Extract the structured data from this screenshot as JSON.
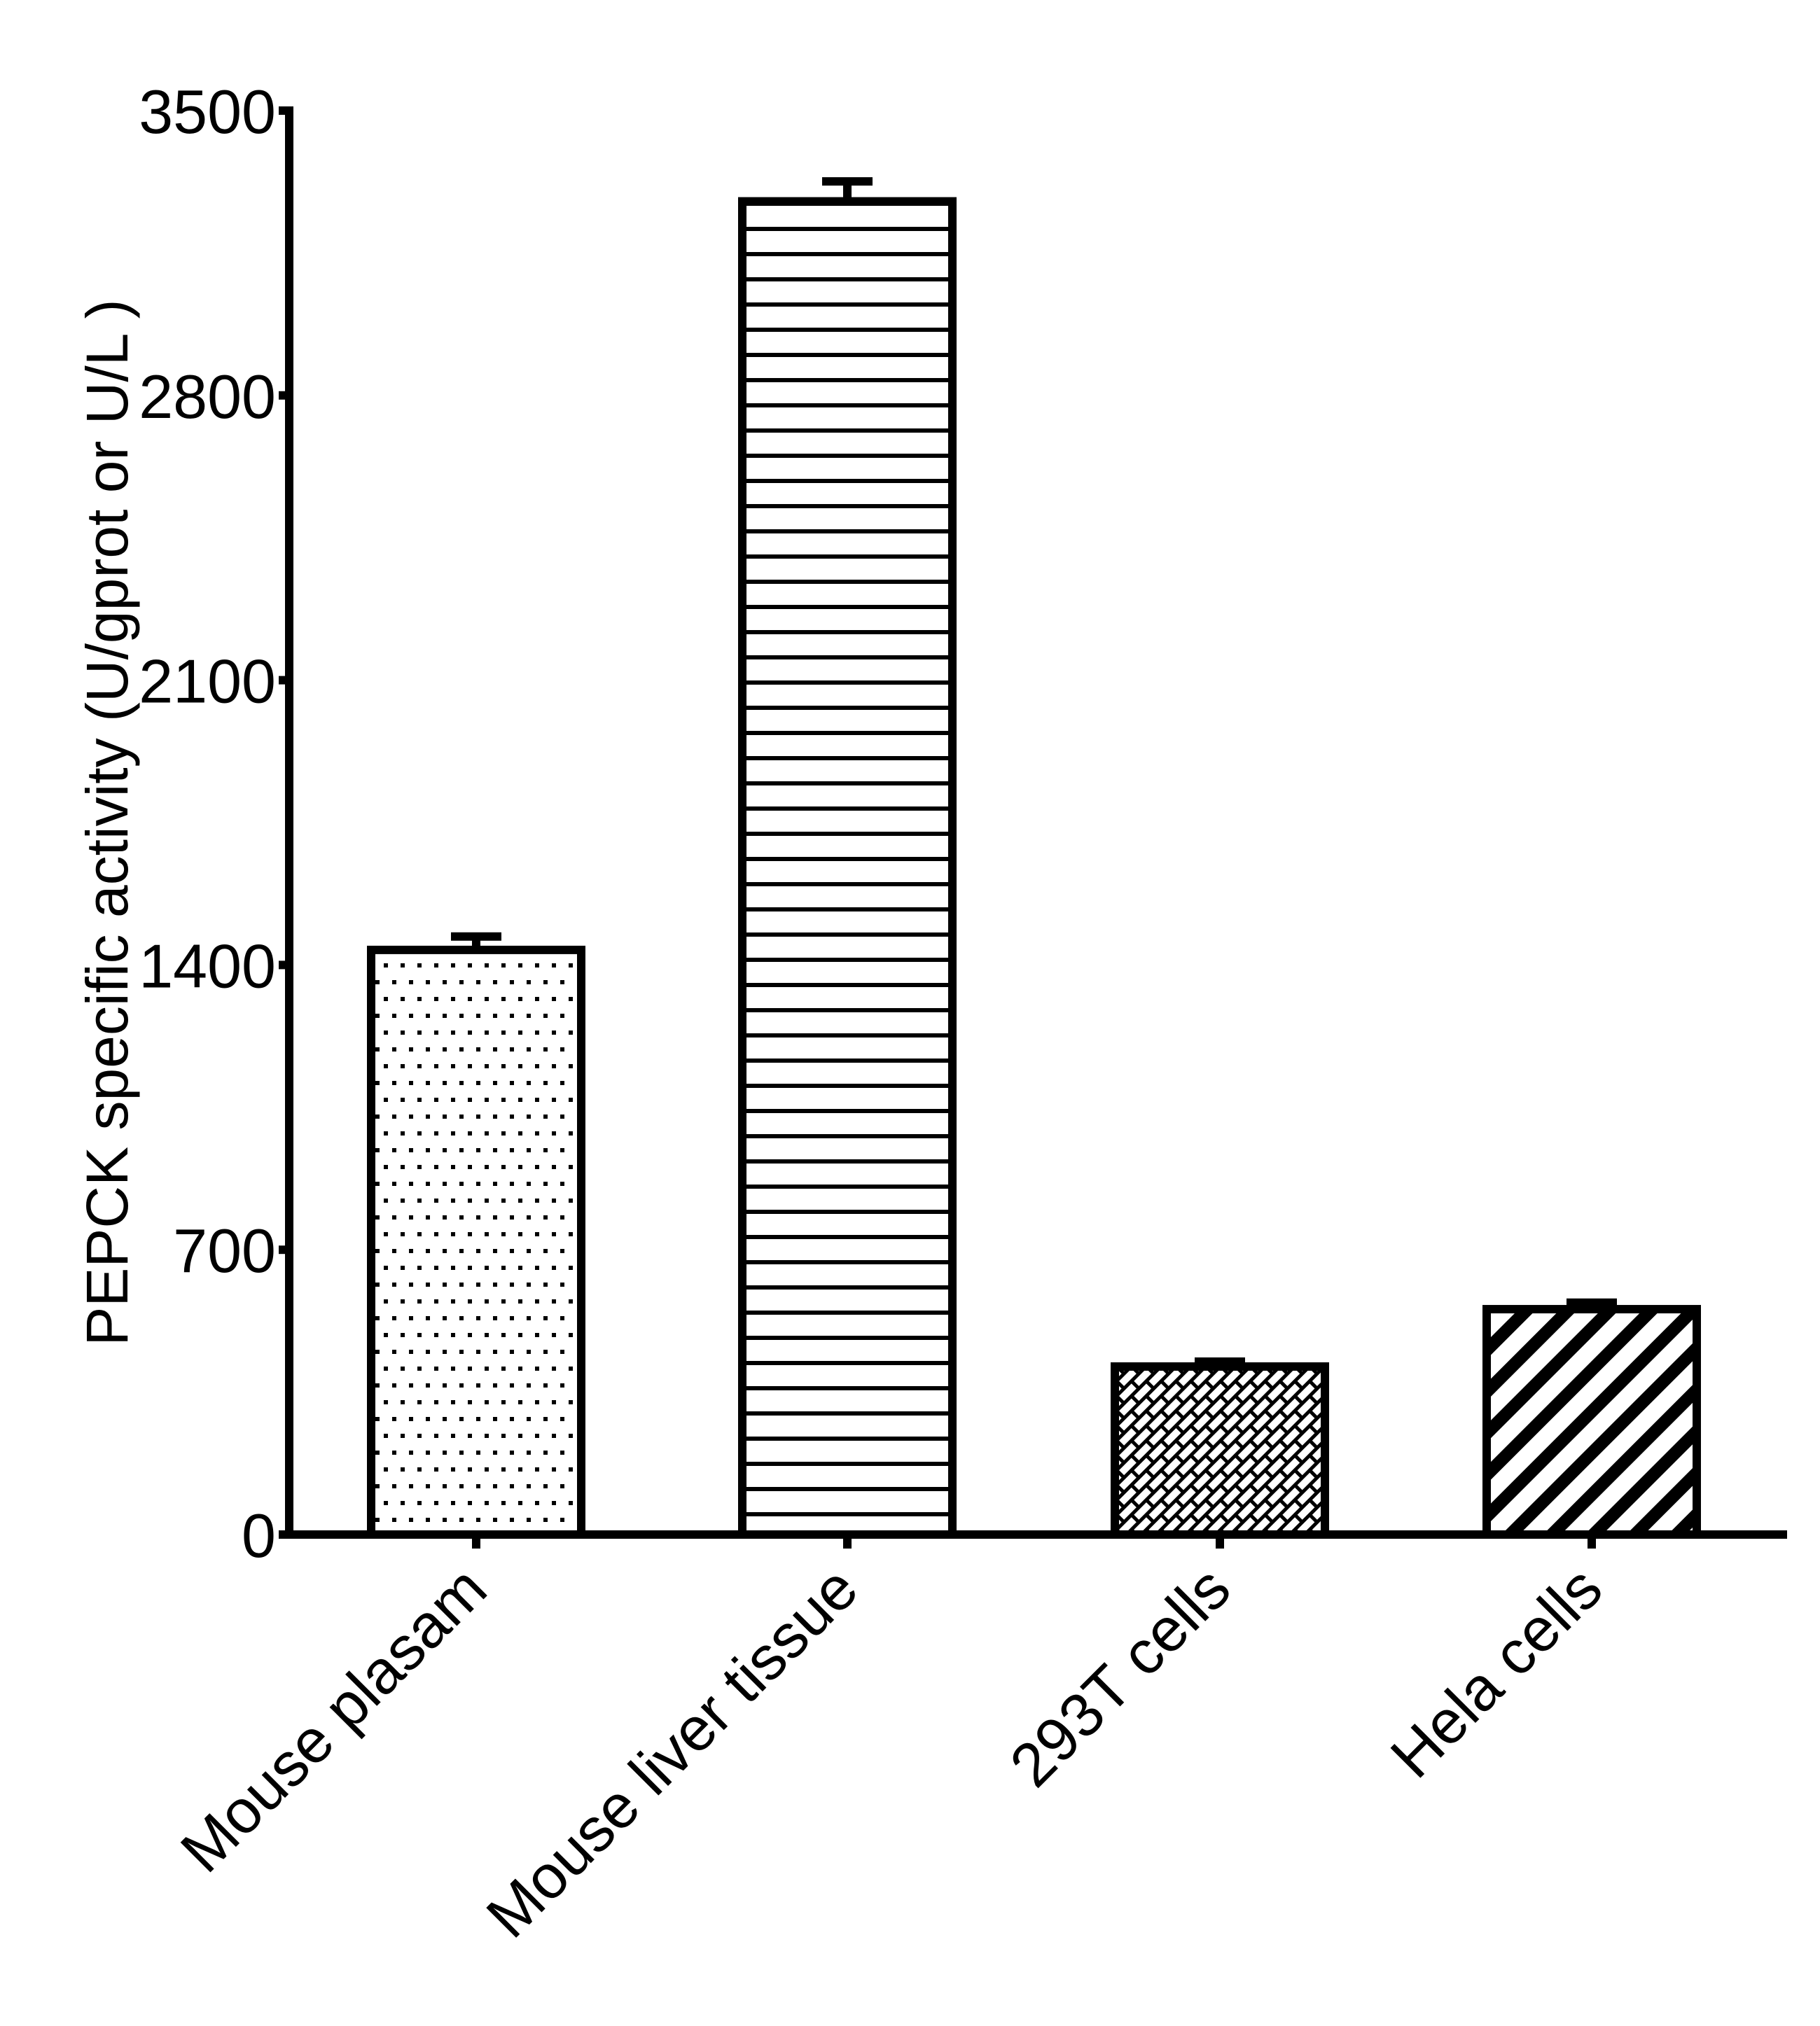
{
  "chart_data": {
    "type": "bar",
    "title": "",
    "xlabel": "",
    "ylabel": "PEPCK specific activity (U/gprot or U/L )",
    "ylim": [
      0,
      3500
    ],
    "yticks": [
      0,
      700,
      1400,
      2100,
      2800,
      3500
    ],
    "ytick_labels": [
      "0",
      "700",
      "1400",
      "2100",
      "2800",
      "3500"
    ],
    "grid": false,
    "legend": null,
    "categories": [
      "Mouse plasam",
      "Mouse liver tissue",
      "293T cells",
      "Hela cells"
    ],
    "values": [
      1437,
      3277,
      413,
      554
    ],
    "error_upper": [
      1470,
      3326,
      425,
      570
    ],
    "fill_patterns": [
      "dots",
      "horizontal-lines",
      "brick-crosshatch",
      "diagonal-stripes"
    ],
    "bar_color": "#ffffff",
    "edge_color": "#000000"
  }
}
